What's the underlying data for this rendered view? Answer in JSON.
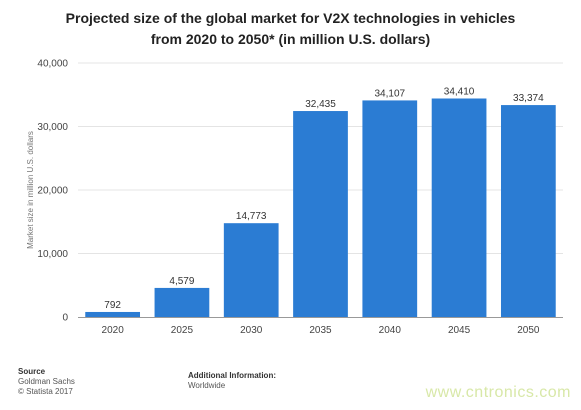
{
  "title_line1": "Projected size of the global market for V2X technologies in vehicles",
  "title_line2": "from 2020 to 2050* (in million U.S. dollars)",
  "footer": {
    "source_heading": "Source",
    "source_name": "Goldman Sachs",
    "copyright": "© Statista 2017",
    "additional_heading": "Additional Information:",
    "additional_value": "Worldwide"
  },
  "watermark": "www.cntronics.com",
  "colors": {
    "bar": "#2b7cd3",
    "grid": "#e4e4e4",
    "axis": "#999999"
  },
  "chart_data": {
    "type": "bar",
    "categories": [
      "2020",
      "2025",
      "2030",
      "2035",
      "2040",
      "2045",
      "2050"
    ],
    "values": [
      792,
      4579,
      14773,
      32435,
      34107,
      34410,
      33374
    ],
    "value_labels": [
      "792",
      "4,579",
      "14,773",
      "32,435",
      "34,107",
      "34,410",
      "33,374"
    ],
    "ylabel": "Market size in million U.S. dollars",
    "ylim": [
      0,
      40000
    ],
    "yticks": [
      0,
      10000,
      20000,
      30000,
      40000
    ],
    "ytick_labels": [
      "0",
      "10,000",
      "20,000",
      "30,000",
      "40,000"
    ],
    "grid": true
  }
}
